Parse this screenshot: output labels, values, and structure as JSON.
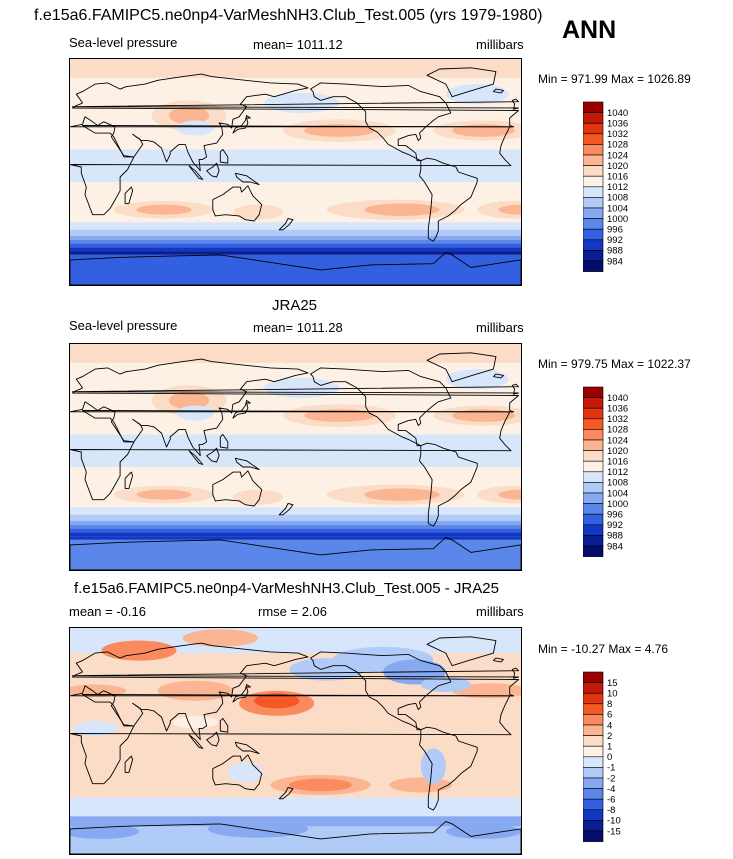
{
  "figure": {
    "title": "f.e15a6.FAMIPC5.ne0np4-VarMeshNH3.Club_Test.005 (yrs 1979-1980)",
    "season": "ANN"
  },
  "chart_data": [
    {
      "type": "heatmap",
      "kind": "global map (filled contours) with coastlines",
      "panel_title": "",
      "left_label": "Sea-level pressure",
      "center_label": "mean= 1011.12",
      "right_label": "millibars",
      "minmax_label": "Min = 971.99 Max = 1026.89",
      "mean": 1011.12,
      "min": 971.99,
      "max": 1026.89,
      "units": "millibars",
      "colorbar_levels": [
        "1040",
        "1036",
        "1032",
        "1028",
        "1024",
        "1020",
        "1016",
        "1012",
        "1008",
        "1004",
        "1000",
        "996",
        "992",
        "988",
        "984"
      ],
      "colorbar_colors": [
        "#9b0000",
        "#c41808",
        "#e2340e",
        "#f45824",
        "#fb8a5e",
        "#fbb593",
        "#fbdcc6",
        "#fdf1e6",
        "#d8e6fb",
        "#b0cbf7",
        "#86a9f1",
        "#5b86ea",
        "#3260e0",
        "#1238c3",
        "#0a1d93",
        "#040e6a"
      ]
    },
    {
      "type": "heatmap",
      "kind": "global map (filled contours) with coastlines",
      "panel_title": "JRA25",
      "left_label": "Sea-level pressure",
      "center_label": "mean= 1011.28",
      "right_label": "millibars",
      "minmax_label": "Min = 979.75 Max = 1022.37",
      "mean": 1011.28,
      "min": 979.75,
      "max": 1022.37,
      "units": "millibars",
      "colorbar_levels": [
        "1040",
        "1036",
        "1032",
        "1028",
        "1024",
        "1020",
        "1016",
        "1012",
        "1008",
        "1004",
        "1000",
        "996",
        "992",
        "988",
        "984"
      ],
      "colorbar_colors": [
        "#9b0000",
        "#c41808",
        "#e2340e",
        "#f45824",
        "#fb8a5e",
        "#fbb593",
        "#fbdcc6",
        "#fdf1e6",
        "#d8e6fb",
        "#b0cbf7",
        "#86a9f1",
        "#5b86ea",
        "#3260e0",
        "#1238c3",
        "#0a1d93",
        "#040e6a"
      ]
    },
    {
      "type": "heatmap",
      "kind": "difference map (filled contours) with coastlines",
      "panel_title": "f.e15a6.FAMIPC5.ne0np4-VarMeshNH3.Club_Test.005 - JRA25",
      "left_label": "mean =  -0.16",
      "center_label": "rmse =   2.06",
      "right_label": "millibars",
      "minmax_label": "Min = -10.27 Max =   4.76",
      "mean": -0.16,
      "rmse": 2.06,
      "min": -10.27,
      "max": 4.76,
      "units": "millibars",
      "colorbar_levels": [
        "15",
        "10",
        "8",
        "6",
        "4",
        "2",
        "1",
        "0",
        "-1",
        "-2",
        "-4",
        "-6",
        "-8",
        "-10",
        "-15"
      ],
      "colorbar_colors": [
        "#9b0000",
        "#c41808",
        "#e2340e",
        "#f45824",
        "#fb8a5e",
        "#fbb593",
        "#fbdcc6",
        "#fdf1e6",
        "#d8e6fb",
        "#b0cbf7",
        "#86a9f1",
        "#5b86ea",
        "#3260e0",
        "#1238c3",
        "#0a1d93",
        "#040e6a"
      ]
    }
  ]
}
